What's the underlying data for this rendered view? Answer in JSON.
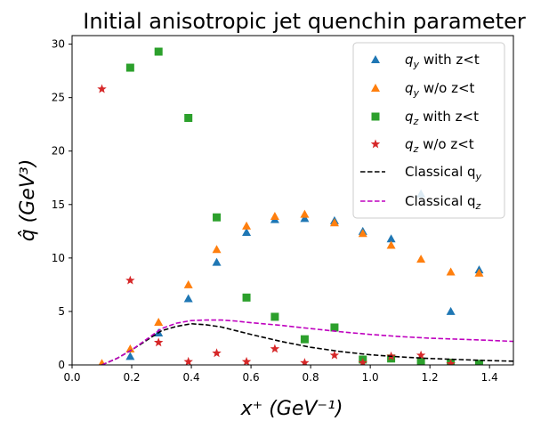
{
  "chart_data": {
    "type": "scatter",
    "title": "Initial anisotropic jet quenchin parameter",
    "xlabel": "x⁺  (GeV⁻¹)",
    "ylabel": "q̂ (GeV³)",
    "xlim": [
      0.0,
      1.48
    ],
    "ylim": [
      0,
      30.8
    ],
    "xticks": [
      "0.0",
      "0.2",
      "0.4",
      "0.6",
      "0.8",
      "1.0",
      "1.2",
      "1.4"
    ],
    "xtick_values": [
      0.0,
      0.2,
      0.4,
      0.6,
      0.8,
      1.0,
      1.2,
      1.4
    ],
    "yticks": [
      "0",
      "5",
      "10",
      "15",
      "20",
      "25",
      "30"
    ],
    "ytick_values": [
      0,
      5,
      10,
      15,
      20,
      25,
      30
    ],
    "grid": false,
    "legend_position": "top-right",
    "series": [
      {
        "name": "q_y with z<t",
        "label_main": "q",
        "label_sub": "y",
        "label_rest": " with z<t",
        "marker": "triangle",
        "color": "#1f77b4",
        "x": [
          0.1,
          0.195,
          0.29,
          0.39,
          0.485,
          0.585,
          0.68,
          0.78,
          0.88,
          0.975,
          1.07,
          1.17,
          1.27,
          1.365
        ],
        "y": [
          0.05,
          0.8,
          3.0,
          6.2,
          9.6,
          12.4,
          13.6,
          13.7,
          13.5,
          12.5,
          11.8,
          16.0,
          5.0,
          8.9
        ]
      },
      {
        "name": "q_y w/o z<t",
        "label_main": "q",
        "label_sub": "y",
        "label_rest": " w/o z<t",
        "marker": "triangle",
        "color": "#ff7f0e",
        "x": [
          0.1,
          0.195,
          0.29,
          0.39,
          0.485,
          0.585,
          0.68,
          0.78,
          0.88,
          0.975,
          1.07,
          1.17,
          1.27,
          1.365
        ],
        "y": [
          0.15,
          1.5,
          4.0,
          7.5,
          10.8,
          13.0,
          13.9,
          14.1,
          13.3,
          12.3,
          11.2,
          9.9,
          8.7,
          8.6
        ]
      },
      {
        "name": "q_z with z<t",
        "label_main": "q",
        "label_sub": "z",
        "label_rest": " with z<t",
        "marker": "square",
        "color": "#2ca02c",
        "x": [
          0.195,
          0.29,
          0.39,
          0.485,
          0.585,
          0.68,
          0.78,
          0.88,
          0.975,
          1.07,
          1.17,
          1.27,
          1.365
        ],
        "y": [
          27.8,
          29.3,
          23.1,
          13.8,
          6.3,
          4.5,
          2.4,
          3.5,
          0.5,
          0.6,
          0.3,
          0.2,
          0.1
        ]
      },
      {
        "name": "q_z w/o z<t",
        "label_main": "q",
        "label_sub": "z",
        "label_rest": " w/o z<t",
        "marker": "star",
        "color": "#d62728",
        "x": [
          0.1,
          0.195,
          0.29,
          0.39,
          0.485,
          0.585,
          0.68,
          0.78,
          0.88,
          0.975,
          1.07,
          1.17,
          1.27
        ],
        "y": [
          25.8,
          7.9,
          2.1,
          0.3,
          1.1,
          0.3,
          1.5,
          0.2,
          0.9,
          0.2,
          0.8,
          0.9,
          0.1
        ]
      },
      {
        "name": "Classical q_y",
        "label_main": "Classical q",
        "label_sub": "y",
        "label_rest": "",
        "type": "line",
        "dash": true,
        "color": "#000000",
        "x": [
          0.1,
          0.15,
          0.2,
          0.25,
          0.3,
          0.35,
          0.4,
          0.45,
          0.5,
          0.55,
          0.6,
          0.7,
          0.8,
          0.9,
          1.0,
          1.1,
          1.2,
          1.3,
          1.4,
          1.48
        ],
        "y": [
          0.0,
          0.6,
          1.4,
          2.3,
          3.2,
          3.6,
          3.85,
          3.75,
          3.55,
          3.2,
          2.85,
          2.2,
          1.65,
          1.25,
          0.95,
          0.75,
          0.6,
          0.5,
          0.4,
          0.35
        ]
      },
      {
        "name": "Classical q_z",
        "label_main": "Classical q",
        "label_sub": "z",
        "label_rest": "",
        "type": "line",
        "dash": true,
        "color": "#bf00bf",
        "x": [
          0.1,
          0.15,
          0.2,
          0.25,
          0.3,
          0.35,
          0.4,
          0.45,
          0.5,
          0.55,
          0.6,
          0.7,
          0.8,
          0.9,
          1.0,
          1.1,
          1.2,
          1.3,
          1.4,
          1.48
        ],
        "y": [
          0.0,
          0.6,
          1.4,
          2.4,
          3.4,
          3.9,
          4.15,
          4.2,
          4.2,
          4.1,
          3.95,
          3.7,
          3.4,
          3.1,
          2.85,
          2.65,
          2.5,
          2.4,
          2.3,
          2.2
        ]
      }
    ]
  }
}
